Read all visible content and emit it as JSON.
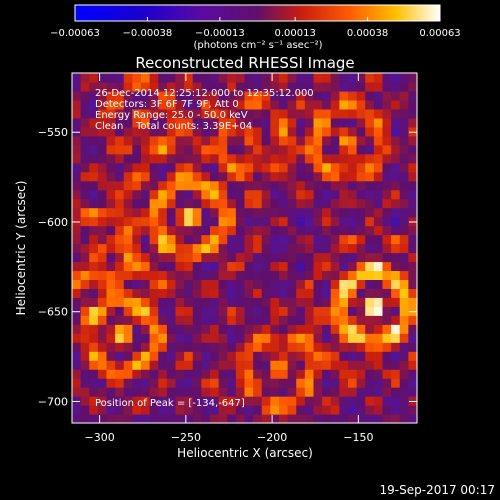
{
  "chart_data": {
    "type": "heatmap",
    "title": "Reconstructed RHESSI Image",
    "xlabel": "Heliocentric X (arcsec)",
    "ylabel": "Heliocentric Y (arcsec)",
    "xlim": [
      -316,
      -116
    ],
    "ylim": [
      -712,
      -517
    ],
    "xticks": [
      -300,
      -250,
      -200,
      -150
    ],
    "yticks": [
      -550,
      -600,
      -650,
      -700
    ],
    "colorbar": {
      "colormap": "blue-purple-red-yellow-white",
      "range": [
        -0.00063,
        0.00063
      ],
      "tick_values": [
        -0.00063,
        -0.00038,
        -0.00013,
        0.00013,
        0.00038,
        0.00063
      ],
      "tick_labels": [
        "-0.00063",
        "-0.00038",
        "-0.00013",
        "0.00013",
        "0.00038",
        "0.00063"
      ],
      "unit_label": "(photons cm⁻² s⁻¹ asec⁻²)"
    },
    "annotations": {
      "line1": "26-Dec-2014 12:25:12.000 to 12:35:12.000",
      "line2": "Detectors: 3F 6F 7F 9F, Att 0",
      "line3": "Energy Range: 25.0 - 50.0 keV",
      "line4": "Clean    Total counts: 3.39E+04",
      "peak": "Position of Peak = [-134,-647]"
    },
    "peak_position": [
      -134,
      -647
    ],
    "bright_sources": [
      {
        "x": -247,
        "y": -597,
        "value": 0.00045
      },
      {
        "x": -286,
        "y": -663,
        "value": 0.00045
      },
      {
        "x": -141,
        "y": -646,
        "value": 0.00063
      },
      {
        "x": -211,
        "y": -551,
        "value": 0.0003
      },
      {
        "x": -156,
        "y": -553,
        "value": 0.0004
      },
      {
        "x": -196,
        "y": -684,
        "value": 0.0004
      },
      {
        "x": -276,
        "y": -540,
        "value": 0.0003
      },
      {
        "x": -302,
        "y": -614,
        "value": 0.00035
      }
    ]
  },
  "footer": {
    "timestamp": "19-Sep-2017 00:17"
  }
}
